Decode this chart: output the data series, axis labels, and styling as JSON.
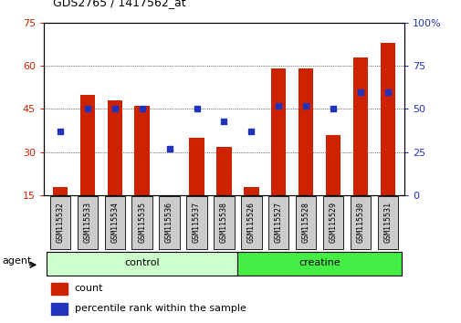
{
  "title": "GDS2765 / 1417562_at",
  "categories": [
    "GSM115532",
    "GSM115533",
    "GSM115534",
    "GSM115535",
    "GSM115536",
    "GSM115537",
    "GSM115538",
    "GSM115526",
    "GSM115527",
    "GSM115528",
    "GSM115529",
    "GSM115530",
    "GSM115531"
  ],
  "bar_values": [
    18,
    50,
    48,
    46,
    15,
    35,
    32,
    18,
    59,
    59,
    36,
    63,
    68
  ],
  "dot_values_pct": [
    37,
    50,
    50,
    50,
    27,
    50,
    43,
    37,
    52,
    52,
    50,
    60,
    60
  ],
  "bar_color": "#cc2200",
  "dot_color": "#2233bb",
  "ymin": 15,
  "ymax": 75,
  "yticks": [
    15,
    30,
    45,
    60,
    75
  ],
  "y2min": 0,
  "y2max": 100,
  "y2ticks": [
    0,
    25,
    50,
    75,
    100
  ],
  "y2ticklabels": [
    "0",
    "25",
    "50",
    "75",
    "100%"
  ],
  "group_colors": [
    "#ccffcc",
    "#44ee44"
  ],
  "agent_label": "agent",
  "legend_count_label": "count",
  "legend_pct_label": "percentile rank within the sample",
  "background_color": "#ffffff",
  "tick_label_bg": "#cccccc"
}
